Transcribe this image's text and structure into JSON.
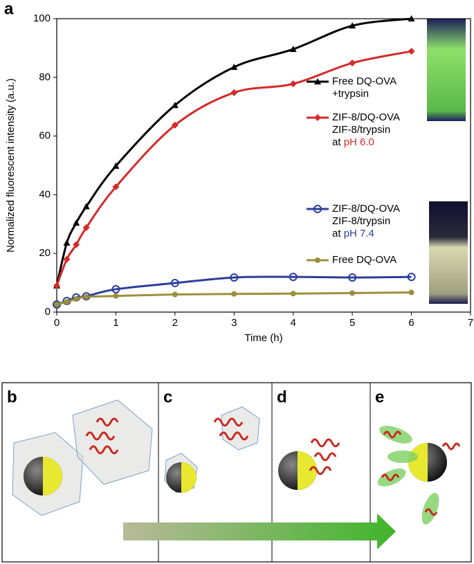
{
  "chart_data": {
    "type": "line",
    "panel_label": "a",
    "x_label": "Time (h)",
    "y_label": "Normalized fluorescent intensity (a.u.)",
    "x": [
      0,
      0.17,
      0.33,
      0.5,
      1,
      2,
      3,
      4,
      5,
      6
    ],
    "xlim": [
      0,
      7
    ],
    "xticks": [
      0,
      1,
      2,
      3,
      4,
      5,
      6,
      7
    ],
    "ylim": [
      0,
      100
    ],
    "yticks": [
      0,
      20,
      40,
      60,
      80,
      100
    ],
    "series": [
      {
        "name": [
          "Free DQ-OVA",
          "+trypsin"
        ],
        "color": "#000000",
        "marker": "triangle",
        "values": [
          9,
          23.6,
          30.4,
          36,
          49.8,
          70.5,
          83.5,
          89.6,
          97.6,
          100
        ]
      },
      {
        "name": [
          "ZIF-8/DQ-OVA",
          "ZIF-8/trypsin",
          "at"
        ],
        "condition": "pH 6.0",
        "color": "#d42a2a",
        "marker": "diamond",
        "values": [
          9,
          18,
          23,
          28.8,
          42.7,
          63.7,
          74.8,
          77.8,
          84.9,
          88.9
        ]
      },
      {
        "name": [
          "ZIF-8/DQ-OVA",
          "ZIF-8/trypsin",
          "at"
        ],
        "condition": "pH 7.4",
        "color": "#2c3e9c",
        "marker": "open-circle",
        "values": [
          2.6,
          3.8,
          5,
          5.4,
          7.8,
          9.9,
          11.8,
          12,
          11.8,
          12
        ]
      },
      {
        "name": [
          "Free DQ-OVA"
        ],
        "color": "#9c8f3c",
        "marker": "circle",
        "values": [
          2.6,
          3.5,
          4.5,
          5.2,
          5.5,
          6,
          6.2,
          6.3,
          6.5,
          6.7
        ]
      }
    ]
  },
  "panels": [
    "b",
    "c",
    "d",
    "e"
  ]
}
